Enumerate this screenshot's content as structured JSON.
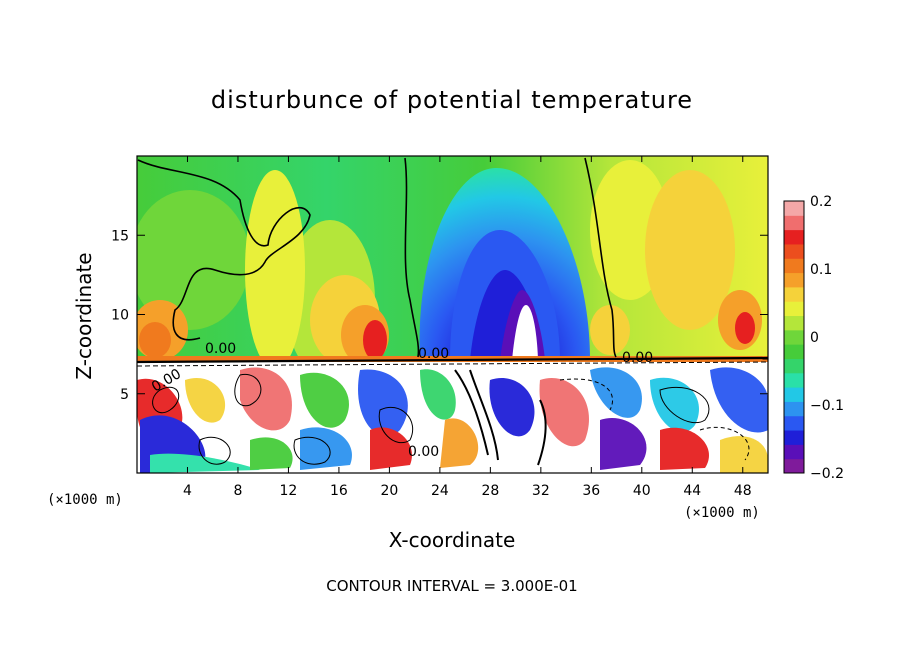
{
  "chart_data": {
    "type": "heatmap",
    "title": "disturbunce of potential temperature",
    "xlabel": "X-coordinate",
    "ylabel": "Z-coordinate",
    "x_unit": "(×1000 m)",
    "x_unit_right": "(×1000 m)",
    "xlim": [
      0,
      50
    ],
    "ylim": [
      0,
      20
    ],
    "x_ticks": [
      "4",
      "8",
      "12",
      "16",
      "20",
      "24",
      "28",
      "32",
      "36",
      "40",
      "44",
      "48"
    ],
    "y_ticks": [
      "5",
      "10",
      "15"
    ],
    "colorbar": {
      "ticks": [
        "0.2",
        "0.1",
        "0",
        "−0.1",
        "−0.2"
      ],
      "range": [
        -0.2,
        0.2
      ],
      "colors": [
        "#7f1b9b",
        "#5a0fb8",
        "#1f1fd8",
        "#2a58f2",
        "#2d93f0",
        "#22c8e6",
        "#2ae0a8",
        "#34d46a",
        "#46cc3a",
        "#6fd63a",
        "#b4e63a",
        "#e8f03a",
        "#f5d23a",
        "#f5a02a",
        "#f07a1e",
        "#ec4e1e",
        "#e62020",
        "#f06e6e",
        "#f4a8a8"
      ]
    },
    "contour_labels": [
      "0.00",
      "0.00",
      "0.00",
      "0.00",
      "0.00"
    ],
    "annotation": "CONTOUR INTERVAL = 3.000E-01"
  }
}
